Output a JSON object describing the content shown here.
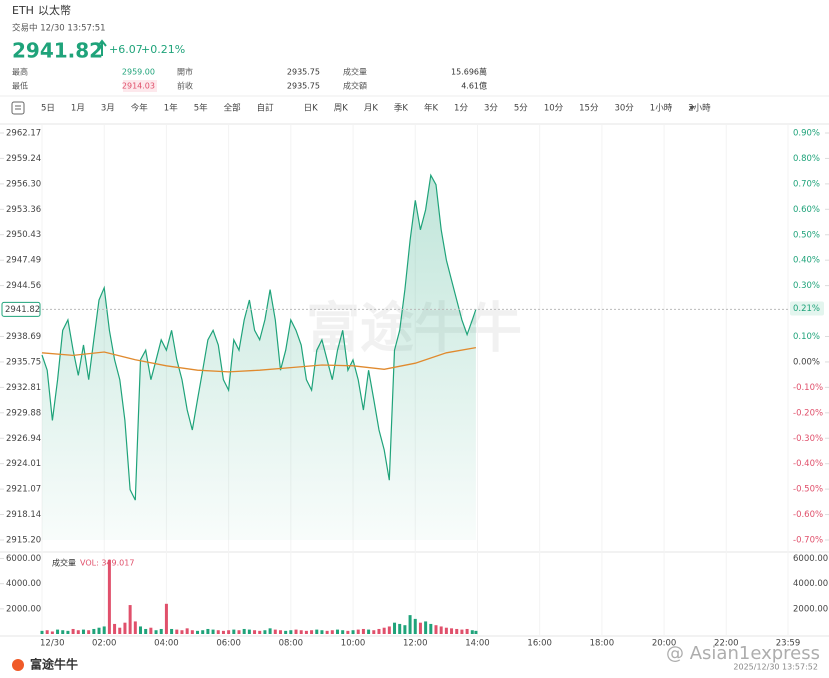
{
  "header": {
    "symbol": "ETH",
    "name": "以太幣",
    "status": "交易中 12/30 13:57:51",
    "price": "2941.82",
    "change": "+6.07",
    "change_pct": "+0.21%"
  },
  "stats": [
    [
      {
        "label": "最高",
        "value": "2959.00"
      },
      {
        "label": "開市",
        "value": "2935.75"
      },
      {
        "label": "成交量",
        "value": "15.696萬"
      }
    ],
    [
      {
        "label": "最低",
        "value": "2914.03"
      },
      {
        "label": "前收",
        "value": "2935.75"
      },
      {
        "label": "成交額",
        "value": "4.61億"
      }
    ]
  ],
  "tabs": [
    "5日",
    "1月",
    "3月",
    "今年",
    "1年",
    "5年",
    "全部",
    "自訂",
    "日K",
    "周K",
    "月K",
    "季K",
    "年K",
    "1分",
    "3分",
    "5分",
    "10分",
    "15分",
    "30分",
    "1小時",
    "2小時"
  ],
  "watermark": "富途牛牛",
  "footer": {
    "logo": "富途牛牛",
    "credit": "@ Asian1express",
    "timestamp": "2025/12/30 13:57:52"
  },
  "chart_data": [
    {
      "type": "line",
      "x": [
        0,
        10,
        20,
        30,
        40,
        50,
        60,
        70,
        80,
        90,
        100,
        110,
        120,
        130,
        140,
        150,
        160,
        170,
        180,
        190,
        200,
        210,
        220,
        230,
        240,
        250,
        260,
        270,
        280,
        290,
        300,
        310,
        320,
        330,
        340,
        350,
        360,
        370,
        380,
        390,
        400,
        410,
        420,
        430,
        440,
        450,
        460,
        470,
        480,
        490,
        500,
        510,
        520,
        530,
        540,
        550,
        560,
        570,
        580,
        590,
        600,
        610,
        620,
        630,
        640,
        650,
        660,
        670,
        680,
        690,
        700,
        710,
        720,
        730,
        740,
        750,
        760,
        770,
        780,
        790,
        800,
        810,
        820,
        830,
        837
      ],
      "series": [
        {
          "color": "#1fa37a",
          "values": [
            2936.55,
            2934.8,
            2929.0,
            2933.7,
            2939.4,
            2940.6,
            2937.1,
            2934.2,
            2937.7,
            2933.7,
            2938.3,
            2942.9,
            2944.3,
            2939.4,
            2936.0,
            2933.7,
            2929.0,
            2921.0,
            2919.8,
            2936.0,
            2937.1,
            2933.7,
            2936.0,
            2938.3,
            2937.1,
            2939.4,
            2936.0,
            2933.7,
            2930.2,
            2927.9,
            2931.4,
            2934.8,
            2938.3,
            2939.4,
            2937.7,
            2933.7,
            2932.5,
            2938.3,
            2937.1,
            2940.6,
            2942.9,
            2939.4,
            2938.3,
            2940.6,
            2944.1,
            2940.6,
            2934.8,
            2937.1,
            2940.6,
            2939.4,
            2937.7,
            2933.7,
            2932.5,
            2937.1,
            2938.3,
            2936.0,
            2933.7,
            2937.1,
            2939.4,
            2934.8,
            2936.0,
            2933.7,
            2930.2,
            2934.8,
            2931.4,
            2927.9,
            2925.6,
            2922.1,
            2937.1,
            2939.4,
            2944.1,
            2949.8,
            2954.4,
            2951.0,
            2953.3,
            2957.3,
            2956.2,
            2951.0,
            2947.5,
            2945.2,
            2942.9,
            2940.6,
            2938.9,
            2940.6,
            2941.82
          ]
        },
        {
          "color": "#e08a2e",
          "x": [
            0,
            60,
            120,
            180,
            240,
            300,
            360,
            420,
            480,
            540,
            600,
            660,
            720,
            780,
            837
          ],
          "values": [
            2936.8,
            2936.5,
            2936.9,
            2936.0,
            2935.3,
            2934.8,
            2934.6,
            2934.8,
            2935.1,
            2935.4,
            2935.3,
            2934.9,
            2935.6,
            2936.8,
            2937.4
          ]
        }
      ],
      "xlim": [
        0,
        1439
      ],
      "xticks": [
        {
          "value": 0,
          "label": "12/30"
        },
        {
          "value": 120,
          "label": "02:00"
        },
        {
          "value": 240,
          "label": "04:00"
        },
        {
          "value": 360,
          "label": "06:00"
        },
        {
          "value": 480,
          "label": "08:00"
        },
        {
          "value": 600,
          "label": "10:00"
        },
        {
          "value": 720,
          "label": "12:00"
        },
        {
          "value": 840,
          "label": "14:00"
        },
        {
          "value": 960,
          "label": "16:00"
        },
        {
          "value": 1080,
          "label": "18:00"
        },
        {
          "value": 1200,
          "label": "20:00"
        },
        {
          "value": 1320,
          "label": "22:00"
        },
        {
          "value": 1439,
          "label": "23:59"
        }
      ],
      "ylim": [
        2915.2,
        2962.17
      ],
      "yticks": [
        2962.17,
        2959.24,
        {
          "value": 2956.3,
          "label": "2956.30"
        },
        2953.36,
        2950.43,
        2947.49,
        2944.56,
        2938.69,
        2935.75,
        2932.81,
        2929.88,
        2926.94,
        2924.01,
        2921.07,
        2918.14,
        {
          "value": 2915.2,
          "label": "2915.20"
        }
      ],
      "y2lim": [
        -0.7,
        0.9
      ],
      "y2ticks": [
        {
          "value": 0.9,
          "label": "0.90%"
        },
        {
          "value": 0.8,
          "label": "0.80%"
        },
        {
          "value": 0.7,
          "label": "0.70%"
        },
        {
          "value": 0.6,
          "label": "0.60%"
        },
        {
          "value": 0.5,
          "label": "0.50%"
        },
        {
          "value": 0.4,
          "label": "0.40%"
        },
        {
          "value": 0.3,
          "label": "0.30%"
        },
        {
          "value": 0.1,
          "label": "0.10%"
        },
        {
          "value": 0,
          "label": "0.00%"
        },
        {
          "value": -0.1,
          "label": "-0.10%"
        },
        {
          "value": -0.2,
          "label": "-0.20%"
        },
        {
          "value": -0.3,
          "label": "-0.30%"
        },
        {
          "value": -0.4,
          "label": "-0.40%"
        },
        {
          "value": -0.5,
          "label": "-0.50%"
        },
        {
          "value": -0.6,
          "label": "-0.60%"
        },
        {
          "value": -0.7,
          "label": "-0.70%"
        }
      ],
      "last_price": {
        "value": 2941.82,
        "label": "2941.82"
      },
      "last_pct": {
        "value": 0.21,
        "label": "0.21%"
      }
    },
    {
      "type": "bar",
      "title": "成交量",
      "subtitle": "VOL: 349.017",
      "up_color": "#1fa37a",
      "down_color": "#e0506b",
      "x": [
        0,
        10,
        20,
        30,
        40,
        50,
        60,
        70,
        80,
        90,
        100,
        110,
        120,
        130,
        140,
        150,
        160,
        170,
        180,
        190,
        200,
        210,
        220,
        230,
        240,
        250,
        260,
        270,
        280,
        290,
        300,
        310,
        320,
        330,
        340,
        350,
        360,
        370,
        380,
        390,
        400,
        410,
        420,
        430,
        440,
        450,
        460,
        470,
        480,
        490,
        500,
        510,
        520,
        530,
        540,
        550,
        560,
        570,
        580,
        590,
        600,
        610,
        620,
        630,
        640,
        650,
        660,
        670,
        680,
        690,
        700,
        710,
        720,
        730,
        740,
        750,
        760,
        770,
        780,
        790,
        800,
        810,
        820,
        830,
        837
      ],
      "values": [
        250,
        300,
        200,
        350,
        300,
        250,
        400,
        300,
        350,
        300,
        400,
        500,
        600,
        5900,
        800,
        500,
        900,
        2300,
        1000,
        600,
        400,
        500,
        300,
        400,
        2400,
        400,
        350,
        300,
        450,
        300,
        250,
        300,
        400,
        350,
        300,
        250,
        300,
        350,
        300,
        400,
        350,
        300,
        250,
        300,
        450,
        350,
        300,
        250,
        300,
        350,
        300,
        250,
        300,
        350,
        300,
        250,
        300,
        350,
        300,
        250,
        300,
        350,
        400,
        350,
        300,
        400,
        500,
        600,
        900,
        800,
        700,
        1500,
        1200,
        900,
        1000,
        800,
        700,
        600,
        500,
        450,
        400,
        350,
        400,
        300,
        250
      ],
      "xlim": [
        0,
        1439
      ],
      "ylim": [
        0,
        6200
      ],
      "yticks": [
        {
          "value": 6000,
          "label": "6000.00"
        },
        {
          "value": 4000,
          "label": "4000.00"
        },
        {
          "value": 2000,
          "label": "2000.00"
        }
      ]
    }
  ]
}
